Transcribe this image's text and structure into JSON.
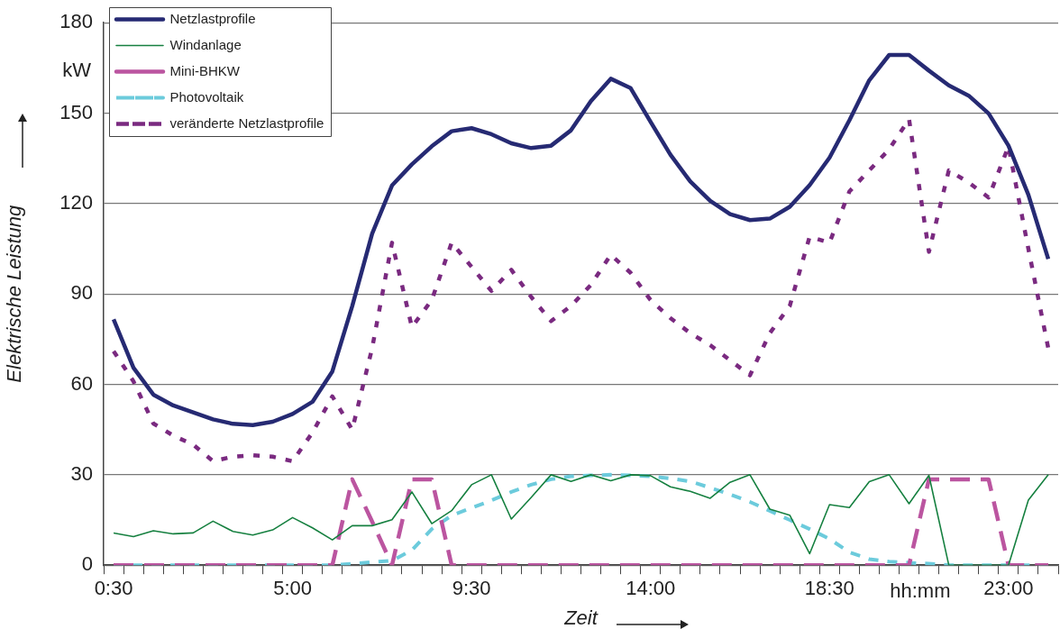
{
  "chart_data": {
    "type": "line",
    "ylabel": "Elektrische Leistung",
    "xlabel": "Zeit",
    "annotations": [
      "kW",
      "hh:mm"
    ],
    "categories": [
      "0:30",
      null,
      null,
      null,
      null,
      null,
      null,
      null,
      null,
      "5:00",
      null,
      null,
      null,
      null,
      null,
      null,
      null,
      null,
      "9:30",
      null,
      null,
      null,
      null,
      null,
      null,
      null,
      null,
      "14:00",
      null,
      null,
      null,
      null,
      null,
      null,
      null,
      null,
      "18:30",
      null,
      null,
      null,
      null,
      null,
      null,
      null,
      null,
      "23:00",
      null,
      null
    ],
    "ylim": [
      0,
      180
    ],
    "yticks": [
      0,
      30,
      60,
      90,
      120,
      150,
      180
    ],
    "grid": "y",
    "legend": "top left",
    "marker": "none",
    "series": [
      {
        "name": "Netzlastprofile",
        "color": "#262a73",
        "line_style": "solid",
        "values": [
          81.6,
          65.5,
          56.6,
          53,
          50.7,
          48.4,
          46.9,
          46.5,
          47.6,
          50.2,
          54.2,
          64.3,
          86,
          110,
          126,
          133,
          139,
          144,
          145,
          143,
          140,
          138.4,
          139.2,
          144.3,
          154,
          161.4,
          158.3,
          147.1,
          136.2,
          127.3,
          120.9,
          116.5,
          114.5,
          115,
          118.9,
          126.1,
          135.2,
          147.6,
          160.9,
          169.3,
          169.3,
          164.1,
          159.2,
          155.8,
          149.9,
          139.2,
          122.9,
          101.6
        ]
      },
      {
        "name": "Windanlage",
        "color": "#168040",
        "line_style": "solid",
        "values": [
          10.7,
          9.5,
          11.4,
          10.4,
          10.7,
          14.6,
          11.2,
          10,
          11.7,
          15.8,
          12.4,
          8.4,
          13.1,
          13.1,
          15.1,
          24.3,
          13.8,
          18.1,
          26.7,
          30,
          15.3,
          22.5,
          30,
          27.8,
          30,
          28,
          30,
          29.7,
          26,
          24.5,
          22.2,
          27.5,
          30,
          18.6,
          16.6,
          3.8,
          20.1,
          19.1,
          27.7,
          30,
          20.4,
          29.8,
          0,
          0,
          0,
          0,
          21.6,
          30
        ]
      },
      {
        "name": "Mini-BHKW",
        "color": "#bb55a0",
        "line_style": "dashed",
        "values": [
          0,
          0,
          0,
          0,
          0,
          0,
          0,
          0,
          0,
          0,
          0,
          0,
          28.5,
          14.5,
          0,
          28.5,
          28.5,
          0,
          0,
          0,
          0,
          0,
          0,
          0,
          0,
          0,
          0,
          0,
          0,
          0,
          0,
          0,
          0,
          0,
          0,
          0,
          0,
          0,
          0,
          0,
          0,
          28.5,
          28.5,
          28.5,
          28.5,
          0,
          0,
          0
        ]
      },
      {
        "name": "Photovoltaik",
        "color": "#6ccbdc",
        "line_style": "dashed",
        "values": [
          0,
          0,
          0,
          0,
          0,
          0,
          0,
          0,
          0,
          0,
          0,
          0,
          0.5,
          1,
          1.5,
          5,
          12,
          16.5,
          19,
          21.5,
          24.3,
          26.7,
          28.5,
          29.5,
          29.8,
          30,
          29.8,
          29.5,
          28.8,
          27.8,
          25.7,
          23.5,
          21,
          18,
          15,
          12,
          8.7,
          4.3,
          2,
          1.2,
          0.8,
          0.5,
          0,
          0,
          0,
          0,
          0,
          0
        ]
      },
      {
        "name": "veränderte Netzlastprofile",
        "color": "#7a2a80",
        "line_style": "dotted",
        "values": [
          71,
          61,
          47,
          43,
          40,
          34.5,
          36,
          36.5,
          36,
          34.5,
          44,
          56,
          45,
          72,
          107,
          79,
          88,
          107,
          99,
          91,
          98,
          89,
          81,
          86,
          93,
          103,
          97,
          88,
          82,
          77,
          73,
          68,
          63,
          77,
          86,
          109,
          107,
          124,
          131,
          138,
          148,
          104,
          131,
          127,
          122,
          139,
          105,
          72
        ]
      }
    ]
  }
}
